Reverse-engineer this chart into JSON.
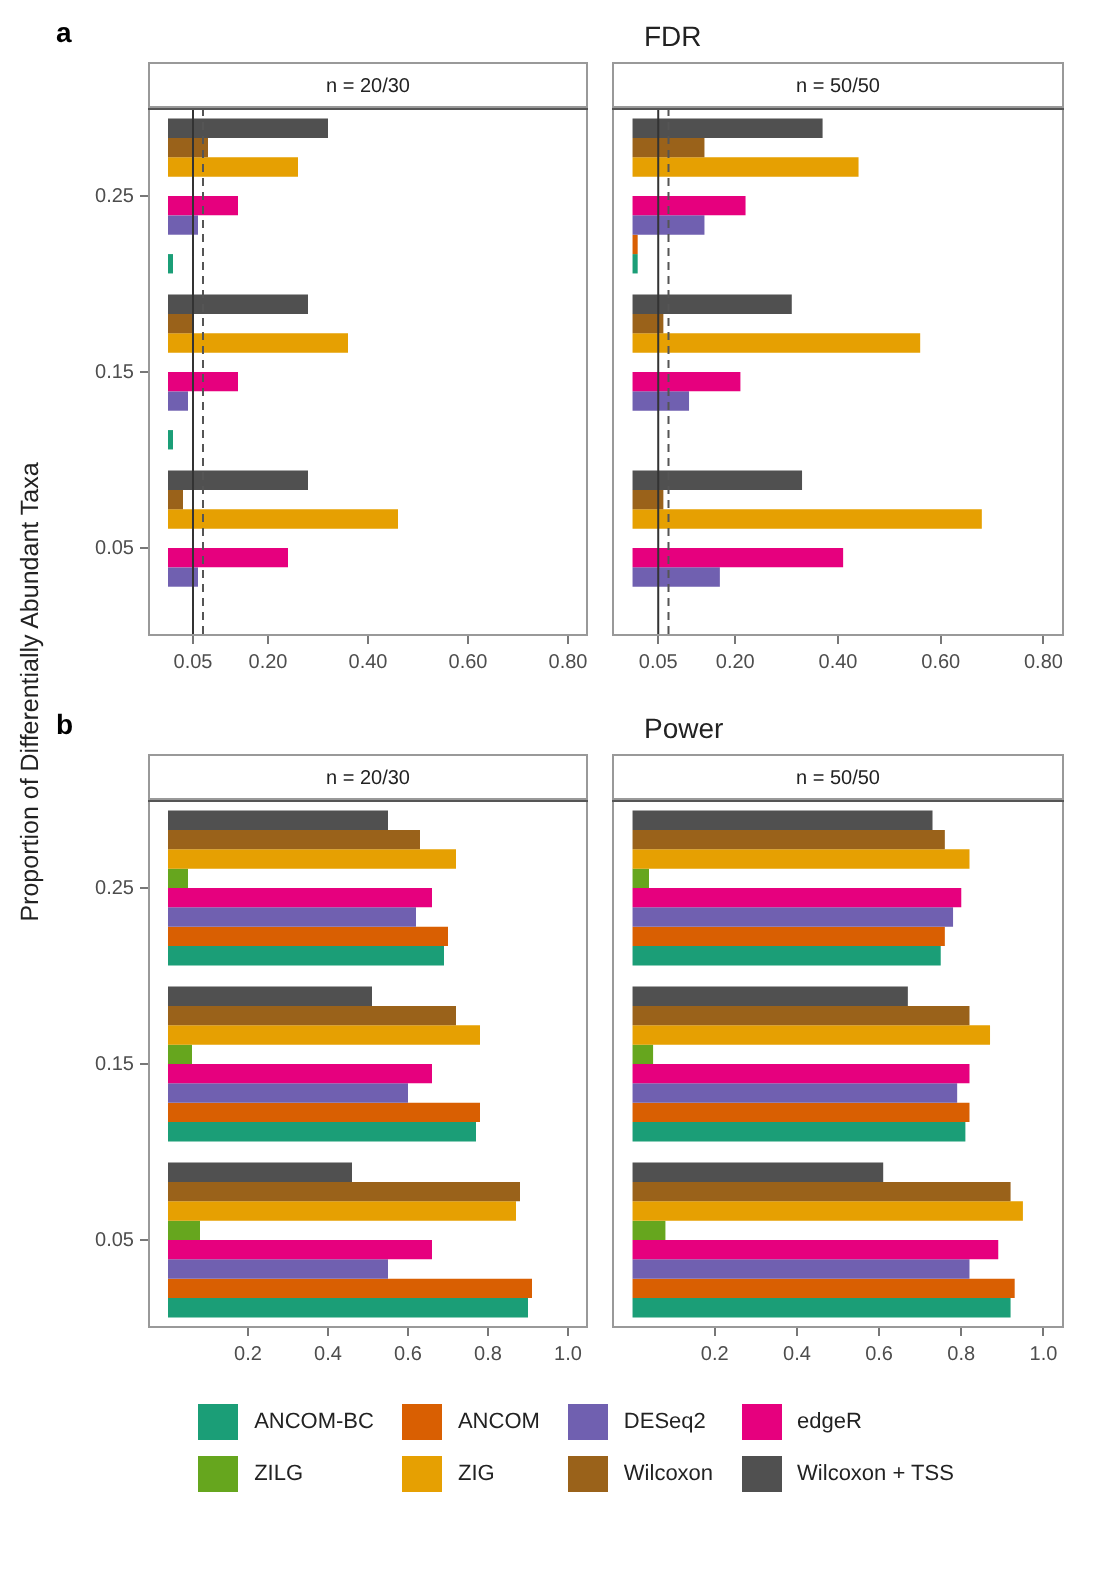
{
  "chart_data": [
    {
      "type": "bar",
      "orientation": "horizontal",
      "subtitle": "n = 20/30",
      "legend": "bottom",
      "annotations": [
        "a"
      ],
      "ylabel": "Proportion of Differentially Abundant Taxa",
      "categories": [
        "0.25",
        "0.15",
        "0.05"
      ],
      "xlim": [
        -0.04,
        0.84
      ],
      "xticks": [
        0.05,
        {
          "value": 0.2,
          "label": "0.20"
        },
        {
          "value": 0.4,
          "label": "0.40"
        },
        {
          "value": 0.6,
          "label": "0.60"
        },
        {
          "value": 0.8,
          "label": "0.80"
        }
      ],
      "ref_lines": [
        {
          "axis": "x",
          "value": 0.05,
          "line_style": "solid",
          "color": "#333333"
        },
        {
          "axis": "x",
          "value": 0.07,
          "line_style": "dashed",
          "color": "#555555"
        }
      ],
      "series": [
        {
          "name": "ANCOM-BC",
          "color": "#1b9e77",
          "values": [
            0.01,
            0.01,
            0
          ]
        },
        {
          "name": "ANCOM",
          "color": "#d95f02",
          "values": [
            0,
            0,
            0
          ]
        },
        {
          "name": "DESeq2",
          "color": "#7060b0",
          "values": [
            0.06,
            0.04,
            0.06
          ]
        },
        {
          "name": "edgeR",
          "color": "#e6007e",
          "values": [
            0.14,
            0.14,
            0.24
          ]
        },
        {
          "name": "ZILG",
          "color": "#66a61e",
          "values": [
            0,
            0,
            0
          ]
        },
        {
          "name": "ZIG",
          "color": "#e6a002",
          "values": [
            0.26,
            0.36,
            0.46
          ]
        },
        {
          "name": "Wilcoxon",
          "color": "#9a621a",
          "values": [
            0.08,
            0.05,
            0.03
          ]
        },
        {
          "name": "Wilcoxon + TSS",
          "color": "#505050",
          "values": [
            0.32,
            0.28,
            0.28
          ]
        }
      ]
    },
    {
      "type": "bar",
      "orientation": "horizontal",
      "title": "FDR",
      "subtitle": "n = 50/50",
      "tick_labels": "x",
      "categories": [
        "0.25",
        "0.15",
        "0.05"
      ],
      "xlim": [
        -0.04,
        0.84
      ],
      "xticks": [
        0.05,
        {
          "value": 0.2,
          "label": "0.20"
        },
        {
          "value": 0.4,
          "label": "0.40"
        },
        {
          "value": 0.6,
          "label": "0.60"
        },
        {
          "value": 0.8,
          "label": "0.80"
        }
      ],
      "ref_lines": [
        {
          "axis": "x",
          "value": 0.05,
          "line_style": "solid",
          "color": "#333333"
        },
        {
          "axis": "x",
          "value": 0.07,
          "line_style": "dashed",
          "color": "#555555"
        }
      ],
      "series": [
        {
          "color": "#1b9e77",
          "values": [
            0.01,
            0,
            0
          ]
        },
        {
          "color": "#d95f02",
          "values": [
            0.01,
            0,
            0
          ]
        },
        {
          "color": "#7060b0",
          "values": [
            0.14,
            0.11,
            0.17
          ]
        },
        {
          "color": "#e6007e",
          "values": [
            0.22,
            0.21,
            0.41
          ]
        },
        {
          "color": "#66a61e",
          "values": [
            0,
            0,
            0
          ]
        },
        {
          "color": "#e6a002",
          "values": [
            0.44,
            0.56,
            0.68
          ]
        },
        {
          "color": "#9a621a",
          "values": [
            0.14,
            0.06,
            0.06
          ]
        },
        {
          "color": "#505050",
          "values": [
            0.37,
            0.31,
            0.33
          ]
        }
      ]
    },
    {
      "type": "bar",
      "orientation": "horizontal",
      "subtitle": "n = 20/30",
      "annotations": [
        "b"
      ],
      "categories": [
        "0.25",
        "0.15",
        "0.05"
      ],
      "xlim": [
        -0.05,
        1.05
      ],
      "xticks": [
        0.2,
        0.4,
        0.6,
        0.8,
        {
          "value": 1,
          "label": "1.0"
        }
      ],
      "series": [
        {
          "color": "#1b9e77",
          "values": [
            0.69,
            0.77,
            0.9
          ]
        },
        {
          "color": "#d95f02",
          "values": [
            0.7,
            0.78,
            0.91
          ]
        },
        {
          "color": "#7060b0",
          "values": [
            0.62,
            0.6,
            0.55
          ]
        },
        {
          "color": "#e6007e",
          "values": [
            0.66,
            0.66,
            0.66
          ]
        },
        {
          "color": "#66a61e",
          "values": [
            0.05,
            0.06,
            0.08
          ]
        },
        {
          "color": "#e6a002",
          "values": [
            0.72,
            0.78,
            0.87
          ]
        },
        {
          "color": "#9a621a",
          "values": [
            0.63,
            0.72,
            0.88
          ]
        },
        {
          "color": "#505050",
          "values": [
            0.55,
            0.51,
            0.46
          ]
        }
      ]
    },
    {
      "type": "bar",
      "orientation": "horizontal",
      "title": "Power",
      "subtitle": "n = 50/50",
      "tick_labels": "x",
      "categories": [
        "0.25",
        "0.15",
        "0.05"
      ],
      "xlim": [
        -0.05,
        1.05
      ],
      "xticks": [
        0.2,
        0.4,
        0.6,
        0.8,
        {
          "value": 1,
          "label": "1.0"
        }
      ],
      "series": [
        {
          "color": "#1b9e77",
          "values": [
            0.75,
            0.81,
            0.92
          ]
        },
        {
          "color": "#d95f02",
          "values": [
            0.76,
            0.82,
            0.93
          ]
        },
        {
          "color": "#7060b0",
          "values": [
            0.78,
            0.79,
            0.82
          ]
        },
        {
          "color": "#e6007e",
          "values": [
            0.8,
            0.82,
            0.89
          ]
        },
        {
          "color": "#66a61e",
          "values": [
            0.04,
            0.05,
            0.08
          ]
        },
        {
          "color": "#e6a002",
          "values": [
            0.82,
            0.87,
            0.95
          ]
        },
        {
          "color": "#9a621a",
          "values": [
            0.76,
            0.82,
            0.92
          ]
        },
        {
          "color": "#505050",
          "values": [
            0.73,
            0.67,
            0.61
          ]
        }
      ]
    }
  ]
}
